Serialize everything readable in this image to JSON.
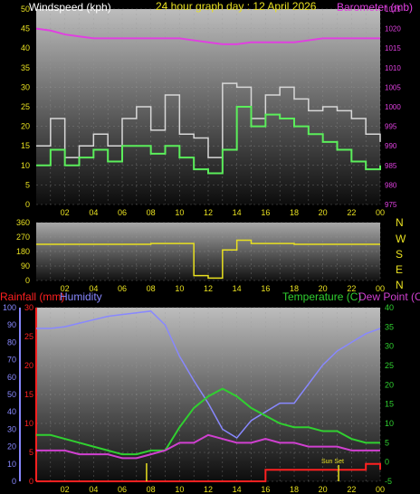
{
  "header": {
    "left_label": "Windspeed (kph)",
    "center_label": "24 hour graph day : 12 April 2026",
    "right_label": "Barometer (mb)"
  },
  "x_ticks": [
    "02",
    "04",
    "06",
    "08",
    "10",
    "12",
    "14",
    "16",
    "18",
    "20",
    "22",
    "00"
  ],
  "compass": [
    "N",
    "W",
    "S",
    "E",
    "N"
  ],
  "bottom": {
    "rain_label": "Rainfall (mm)",
    "humidity_label": "Humidity",
    "temp_label": "Temperature (C)",
    "dew_label": "Dew Point (C)",
    "sunset_label": "Sun Set"
  },
  "colors": {
    "wind_avg": "#5bee5b",
    "wind_gust": "#d8d8d8",
    "barometer": "#e040e0",
    "direction": "#e8e020",
    "rain": "#ff2020",
    "humidity": "#8888ff",
    "temperature": "#30d030",
    "dew_point": "#d040d0",
    "markers": "#e8e020"
  },
  "chart_data": [
    {
      "type": "line",
      "x": [
        0,
        1,
        2,
        3,
        4,
        5,
        6,
        7,
        8,
        9,
        10,
        11,
        12,
        13,
        14,
        15,
        16,
        17,
        18,
        19,
        20,
        21,
        22,
        23,
        24
      ],
      "ylim": [
        0,
        50
      ],
      "y2lim": [
        975,
        1025
      ],
      "yticks": [
        0,
        5,
        10,
        15,
        20,
        25,
        30,
        35,
        40,
        45,
        50
      ],
      "y2ticks": [
        975,
        980,
        985,
        990,
        995,
        1000,
        1005,
        1010,
        1015,
        1020,
        1025
      ],
      "series": [
        {
          "name": "gust",
          "values": [
            15,
            22,
            12,
            15,
            18,
            15,
            22,
            25,
            19,
            28,
            18,
            17,
            12,
            31,
            30,
            22,
            28,
            30,
            27,
            24,
            25,
            24,
            22,
            18,
            16
          ]
        },
        {
          "name": "avg",
          "values": [
            10,
            14,
            10,
            12,
            14,
            11,
            15,
            15,
            13,
            15,
            12,
            9,
            8,
            14,
            25,
            20,
            23,
            22,
            20,
            18,
            16,
            14,
            11,
            9,
            10
          ]
        },
        {
          "name": "barometer",
          "axis": "right",
          "values": [
            1020,
            1019.5,
            1018.5,
            1018,
            1017.5,
            1017.5,
            1017.5,
            1017.5,
            1017.5,
            1017.5,
            1017.5,
            1017,
            1016.5,
            1016,
            1016,
            1016.5,
            1016.5,
            1016.5,
            1016.5,
            1017,
            1017.5,
            1017.5,
            1017.5,
            1017.5,
            1017.5
          ]
        }
      ]
    },
    {
      "type": "line",
      "x": [
        0,
        1,
        2,
        3,
        4,
        5,
        6,
        7,
        8,
        9,
        10,
        11,
        12,
        13,
        14,
        15,
        16,
        17,
        18,
        19,
        20,
        21,
        22,
        23,
        24
      ],
      "ylim": [
        0,
        360
      ],
      "yticks": [
        0,
        90,
        180,
        270,
        360
      ],
      "series": [
        {
          "name": "direction",
          "values": [
            225,
            225,
            225,
            225,
            225,
            225,
            225,
            225,
            230,
            230,
            230,
            30,
            15,
            190,
            250,
            230,
            230,
            230,
            225,
            225,
            225,
            225,
            225,
            225,
            225
          ]
        }
      ]
    },
    {
      "type": "line",
      "x": [
        0,
        1,
        2,
        3,
        4,
        5,
        6,
        7,
        8,
        9,
        10,
        11,
        12,
        13,
        14,
        15,
        16,
        17,
        18,
        19,
        20,
        21,
        22,
        23,
        24
      ],
      "ylim": [
        0,
        30
      ],
      "y2lim": [
        -5,
        40
      ],
      "humidity_ylim": [
        0,
        100
      ],
      "yticks": [
        0,
        5,
        10,
        15,
        20,
        25,
        30
      ],
      "y2ticks": [
        -5,
        0,
        5,
        10,
        15,
        20,
        25,
        30,
        35,
        40
      ],
      "humidity_ticks": [
        0,
        10,
        20,
        30,
        40,
        50,
        60,
        70,
        80,
        90,
        100
      ],
      "series": [
        {
          "name": "rain",
          "values": [
            0,
            0,
            0,
            0,
            0,
            0,
            0,
            0,
            0,
            0,
            0,
            0,
            0,
            0,
            0,
            0,
            2,
            2,
            2,
            2,
            2,
            2,
            2,
            3,
            2
          ]
        },
        {
          "name": "humidity",
          "axis": "humidity",
          "values": [
            88,
            88,
            89,
            91,
            93,
            95,
            96,
            97,
            98,
            90,
            72,
            58,
            45,
            30,
            25,
            35,
            40,
            45,
            45,
            56,
            67,
            75,
            80,
            85,
            88
          ]
        },
        {
          "name": "temperature",
          "axis": "right",
          "values": [
            7,
            7,
            6,
            5,
            4,
            3,
            2,
            2,
            3,
            3,
            9,
            14,
            17,
            19,
            17,
            14,
            12,
            10,
            9,
            9,
            8,
            8,
            6,
            5,
            5
          ]
        },
        {
          "name": "dew_point",
          "axis": "right",
          "values": [
            3,
            3,
            3,
            2,
            2,
            2,
            1,
            1,
            2,
            3,
            5,
            5,
            7,
            6,
            5,
            5,
            6,
            5,
            5,
            4,
            4,
            4,
            3,
            3,
            3
          ]
        }
      ]
    }
  ]
}
